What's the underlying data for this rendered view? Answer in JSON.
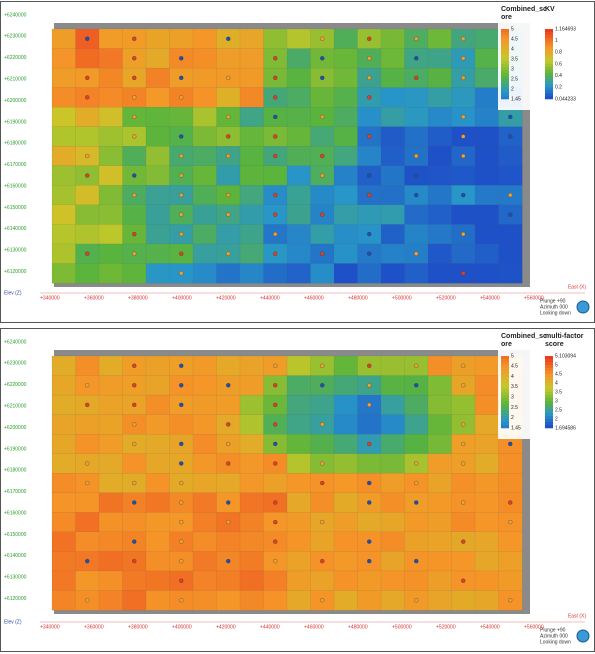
{
  "panels": [
    {
      "y_labels": [
        "+6240000",
        "+6230000",
        "+6220000",
        "+6210000",
        "+6200000",
        "+6190000",
        "+6180000",
        "+6170000",
        "+6160000",
        "+6150000",
        "+6140000",
        "+6130000",
        "+6120000"
      ],
      "x_labels": [
        "+340000",
        "+360000",
        "+380000",
        "+400000",
        "+420000",
        "+440000",
        "+460000",
        "+480000",
        "+500000",
        "+520000",
        "+540000",
        "+560000"
      ],
      "z_axis": "Elev (Z)",
      "x_axis": "East (X)",
      "legend_left": {
        "title": [
          "Combined_sc",
          "ore"
        ],
        "ticks": [
          "5",
          "4.5",
          "4",
          "3.5",
          "3",
          "2.5",
          "2",
          "1.45"
        ]
      },
      "legend_right": {
        "title": [
          "KV"
        ],
        "ticks": [
          "1.164693",
          "1",
          "0.8",
          "0.6",
          "0.4",
          "0.2",
          "0.044233"
        ]
      },
      "view": [
        "Plunge +90",
        "Azimuth 000",
        "Looking down"
      ]
    },
    {
      "y_labels": [
        "+6240000",
        "+6230000",
        "+6220000",
        "+6210000",
        "+6200000",
        "+6190000",
        "+6180000",
        "+6170000",
        "+6160000",
        "+6150000",
        "+6140000",
        "+6130000",
        "+6120000"
      ],
      "x_labels": [
        "+340000",
        "+360000",
        "+380000",
        "+400000",
        "+420000",
        "+440000",
        "+460000",
        "+480000",
        "+500000",
        "+520000",
        "+540000",
        "+560000"
      ],
      "z_axis": "Elev (Z)",
      "x_axis": "East (X)",
      "legend_left": {
        "title": [
          "Combined_sc",
          "ore"
        ],
        "ticks": [
          "5",
          "4.5",
          "4",
          "3.5",
          "3",
          "2.5",
          "2",
          "1.45"
        ]
      },
      "legend_right": {
        "title": [
          "multi-factor",
          "score"
        ],
        "ticks": [
          "5.103094",
          "5",
          "4.5",
          "4",
          "3.5",
          "3",
          "2.5",
          "2",
          "1.694586"
        ]
      },
      "view": [
        "Plunge +90",
        "Azimuth 000",
        "Looking down"
      ]
    }
  ]
}
